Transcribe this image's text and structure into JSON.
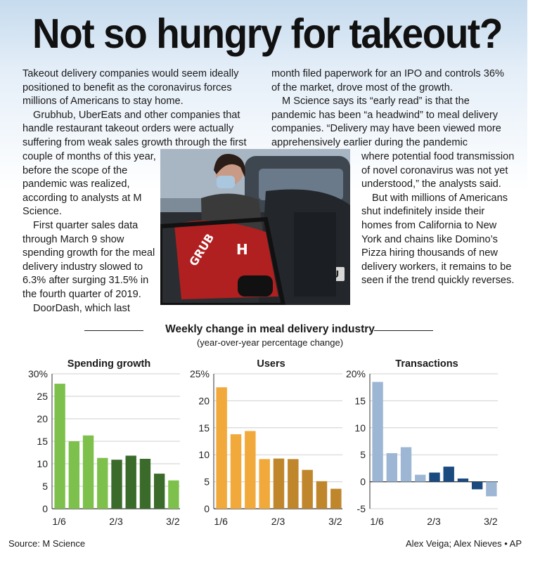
{
  "headline": "Not so hungry for takeout?",
  "body": {
    "col1": [
      "Takeout delivery companies would seem ideally positioned to benefit as the coronavirus forces millions of Americans to stay home.",
      "Grubhub, UberEats and other companies that handle restaurant takeout orders were actually suffering from weak sales growth through the first"
    ],
    "col1b": [
      "couple of months of this year, before the scope of the pandemic was realized, according to analysts at M Science.",
      "First quarter sales data through March 9 show spending growth for the meal delivery industry slowed to 6.3% after surging 31.5% in the fourth quarter of 2019.",
      "DoorDash, which last"
    ],
    "col2": [
      "month filed paperwork for an IPO and controls 36% of the market, drove most of the growth.",
      "M Science says its “early read” is that the pandemic has been “a headwind” to meal delivery companies. “Delivery may have been viewed more apprehensively earlier during the pandemic"
    ],
    "col2b": [
      "where potential food transmission of novel coronavirus was not yet understood,” the analysts said.",
      "But with millions of Americans shut indefinitely inside their homes from California to New York and chains like Domino’s Pizza hiring thousands of new delivery workers, it remains to be seen if the trend quickly reverses."
    ]
  },
  "photo": {
    "bag_text": "GRUB",
    "bag_text2": "H",
    "sign_text": "U"
  },
  "colors": {
    "spend_light": "#7dc04b",
    "spend_dark": "#3a6b2a",
    "users_light": "#f2a93b",
    "users_dark": "#c0862c",
    "trans_light": "#9cb6d4",
    "trans_dark": "#1a4a80",
    "grid": "#cfcfcf",
    "axis": "#333333"
  },
  "chart_data": {
    "title": "Weekly change in meal delivery industry",
    "subtitle": "(year-over-year percentage change)",
    "charts": [
      {
        "type": "bar",
        "title": "Spending growth",
        "ylim": [
          0,
          30
        ],
        "yticks": [
          "30%",
          "25",
          "20",
          "15",
          "10",
          "5",
          "0"
        ],
        "ytick_values": [
          30,
          25,
          20,
          15,
          10,
          5,
          0
        ],
        "categories": [
          "1/6",
          "",
          "",
          "",
          "2/3",
          "",
          "",
          "",
          "3/2"
        ],
        "xlabels": [
          "1/6",
          "2/3",
          "3/2"
        ],
        "values": [
          27.8,
          15,
          16.3,
          11.3,
          10.9,
          11.8,
          11.1,
          7.8,
          6.3
        ],
        "dark": [
          false,
          false,
          false,
          false,
          true,
          true,
          true,
          true,
          false
        ]
      },
      {
        "type": "bar",
        "title": "Users",
        "ylim": [
          0,
          25
        ],
        "yticks": [
          "25%",
          "20",
          "15",
          "10",
          "5",
          "0"
        ],
        "ytick_values": [
          25,
          20,
          15,
          10,
          5,
          0
        ],
        "categories": [
          "1/6",
          "",
          "",
          "",
          "2/3",
          "",
          "",
          "",
          "3/2"
        ],
        "xlabels": [
          "1/6",
          "2/3",
          "3/2"
        ],
        "values": [
          22.5,
          13.8,
          14.4,
          9.2,
          9.3,
          9.2,
          7.2,
          5.1,
          3.7
        ],
        "dark": [
          false,
          false,
          false,
          false,
          true,
          true,
          true,
          true,
          true
        ]
      },
      {
        "type": "bar",
        "title": "Transactions",
        "ylim": [
          -5,
          20
        ],
        "yticks": [
          "20%",
          "15",
          "10",
          "5",
          "0",
          "-5"
        ],
        "ytick_values": [
          20,
          15,
          10,
          5,
          0,
          -5
        ],
        "categories": [
          "1/6",
          "",
          "",
          "",
          "2/3",
          "",
          "",
          "",
          "3/2"
        ],
        "xlabels": [
          "1/6",
          "2/3",
          "3/2"
        ],
        "values": [
          18.5,
          5.3,
          6.4,
          1.3,
          1.7,
          2.8,
          0.6,
          -1.4,
          -2.7
        ],
        "dark": [
          false,
          false,
          false,
          false,
          true,
          true,
          true,
          true,
          false
        ]
      }
    ]
  },
  "footer": {
    "source": "Source: M Science",
    "credit": "Alex Veiga; Alex Nieves • AP"
  }
}
